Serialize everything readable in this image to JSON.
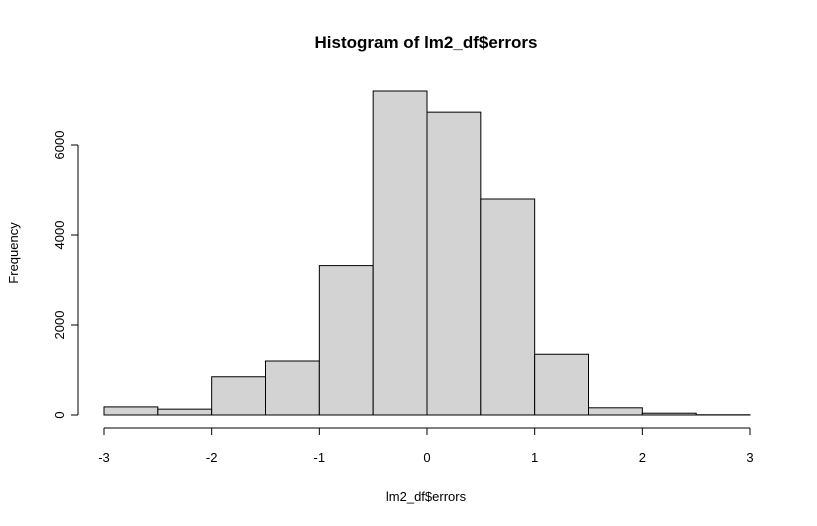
{
  "chart_data": {
    "type": "bar",
    "title": "Histogram of lm2_df$errors",
    "xlabel": "lm2_df$errors",
    "ylabel": "Frequency",
    "bin_edges": [
      -3,
      -2.5,
      -2,
      -1.5,
      -1,
      -0.5,
      0,
      0.5,
      1,
      1.5,
      2,
      2.5,
      3
    ],
    "values": [
      180,
      130,
      850,
      1200,
      3320,
      7200,
      6730,
      4800,
      1350,
      160,
      40,
      5
    ],
    "x_ticks": [
      "-3",
      "-2",
      "-1",
      "0",
      "1",
      "2",
      "3"
    ],
    "x_tick_values": [
      -3,
      -2,
      -1,
      0,
      1,
      2,
      3
    ],
    "y_ticks": [
      "0",
      "2000",
      "4000",
      "6000"
    ],
    "y_tick_values": [
      0,
      2000,
      4000,
      6000
    ],
    "xlim": [
      -3,
      3
    ],
    "ylim": [
      0,
      7200
    ],
    "bar_fill": "#d3d3d3",
    "bar_stroke": "#000000",
    "grid": false,
    "legend": "none"
  }
}
